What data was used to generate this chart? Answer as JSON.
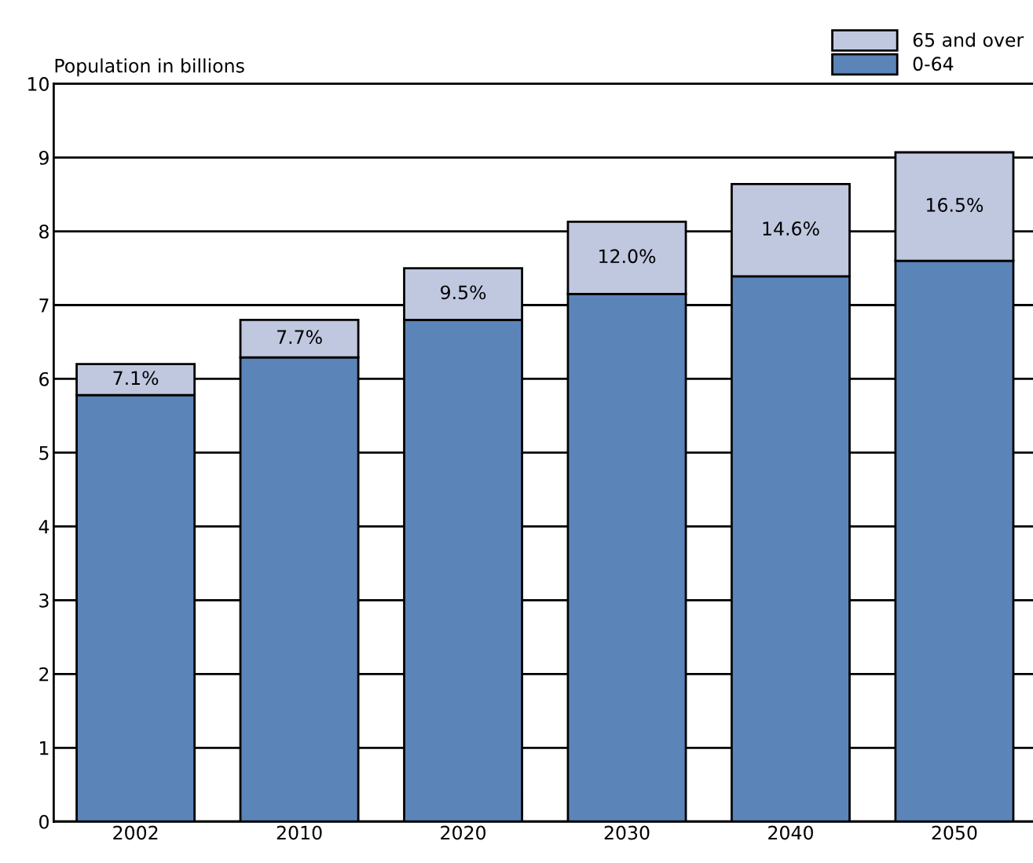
{
  "chart_data": {
    "type": "bar",
    "stacked": true,
    "ylabel": "Population in billions",
    "categories": [
      "2002",
      "2010",
      "2020",
      "2030",
      "2040",
      "2050"
    ],
    "series": [
      {
        "name": "0-64",
        "color": "#5b84b8",
        "values": [
          5.78,
          6.29,
          6.8,
          7.15,
          7.39,
          7.6
        ]
      },
      {
        "name": "65 and over",
        "color": "#c0c8e0",
        "values": [
          0.42,
          0.51,
          0.7,
          0.98,
          1.25,
          1.47
        ]
      }
    ],
    "annotations": [
      "7.1%",
      "7.7%",
      "9.5%",
      "12.0%",
      "14.6%",
      "16.5%"
    ],
    "ylim": [
      0,
      10
    ],
    "yticks": [
      0,
      1,
      2,
      3,
      4,
      5,
      6,
      7,
      8,
      9,
      10
    ],
    "grid": "y",
    "legend": "top right"
  }
}
